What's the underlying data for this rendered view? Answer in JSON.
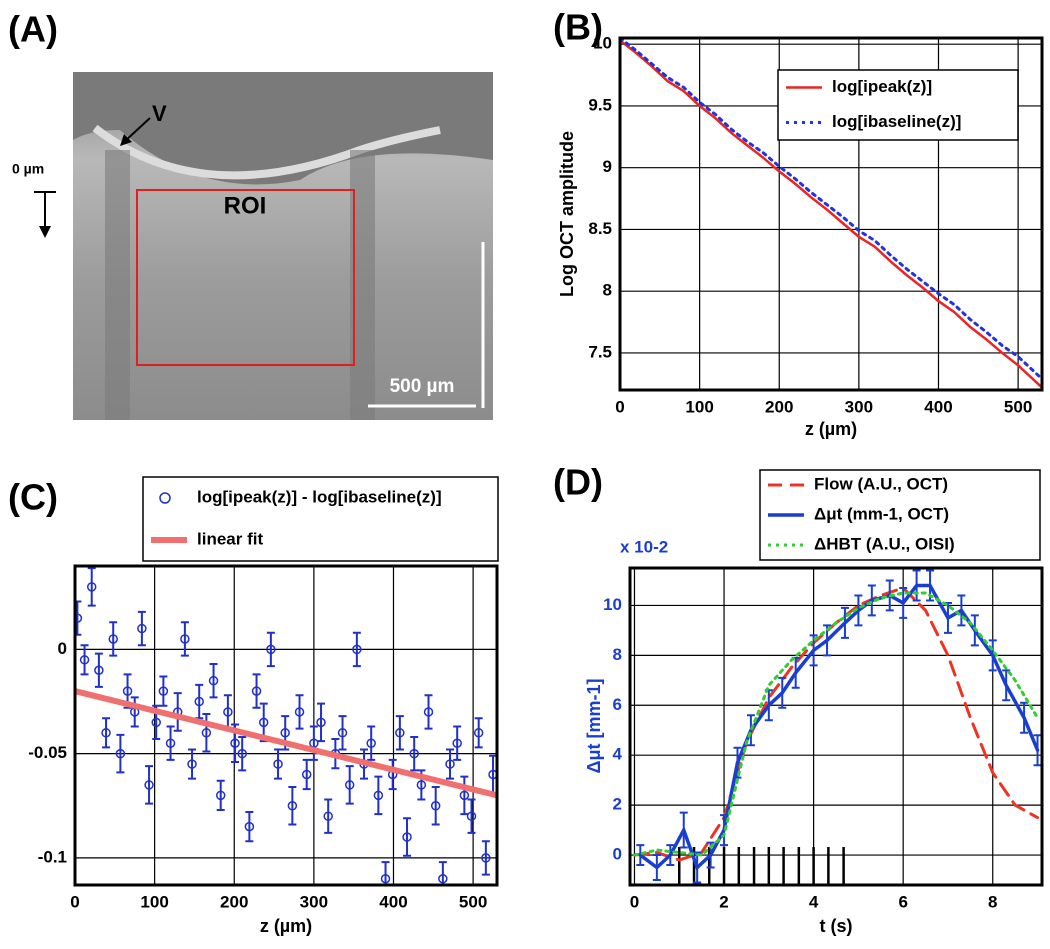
{
  "panel_a": {
    "panel_label": "(A)",
    "vessel_label": "V",
    "depth_label": "0 µm",
    "roi_label": "ROI",
    "scale_label": "500 µm"
  },
  "chart_data": [
    {
      "type": "line",
      "panel_label": "(B)",
      "xlabel": "z (µm)",
      "ylabel": "Log OCT amplitude",
      "xlim": [
        0,
        530
      ],
      "xticks": [
        0,
        100,
        200,
        300,
        400,
        500
      ],
      "ylim": [
        7.2,
        10.05
      ],
      "yticks": [
        7.5,
        8,
        8.5,
        9,
        9.5,
        10
      ],
      "grid": true,
      "legend": "upper right",
      "x": [
        0,
        20,
        40,
        60,
        80,
        100,
        120,
        140,
        160,
        180,
        200,
        220,
        240,
        260,
        280,
        300,
        320,
        340,
        360,
        380,
        400,
        420,
        440,
        460,
        480,
        500,
        520,
        530
      ],
      "series": [
        {
          "name": "log[ipeak(z)]",
          "color": "#ee2222",
          "style": "solid",
          "values": [
            10.03,
            9.93,
            9.82,
            9.7,
            9.62,
            9.5,
            9.4,
            9.28,
            9.18,
            9.08,
            8.97,
            8.87,
            8.76,
            8.66,
            8.55,
            8.44,
            8.36,
            8.24,
            8.13,
            8.03,
            7.92,
            7.83,
            7.71,
            7.61,
            7.5,
            7.4,
            7.28,
            7.22
          ]
        },
        {
          "name": "log[ibaseline(z)]",
          "color": "#2233dd",
          "style": "dotted",
          "values": [
            10.05,
            9.95,
            9.84,
            9.73,
            9.65,
            9.53,
            9.43,
            9.31,
            9.21,
            9.12,
            9.01,
            8.91,
            8.8,
            8.7,
            8.6,
            8.49,
            8.41,
            8.29,
            8.18,
            8.08,
            7.98,
            7.89,
            7.77,
            7.67,
            7.56,
            7.47,
            7.35,
            7.29
          ]
        }
      ]
    },
    {
      "type": "scatter",
      "panel_label": "(C)",
      "xlabel": "z (µm)",
      "xlim": [
        0,
        530
      ],
      "xticks": [
        0,
        100,
        200,
        300,
        400,
        500
      ],
      "ylim": [
        -0.113,
        0.04
      ],
      "yticks": [
        -0.1,
        -0.05,
        0
      ],
      "grid": true,
      "legend": "above",
      "series": [
        {
          "name": "log[ipeak(z)] - log[ibaseline(z)]",
          "color": "#2030c8",
          "marker": "circle",
          "x": [
            3,
            12,
            21,
            30,
            39,
            48,
            57,
            66,
            75,
            84,
            93,
            102,
            111,
            120,
            129,
            138,
            147,
            156,
            165,
            174,
            183,
            192,
            201,
            210,
            219,
            228,
            237,
            246,
            255,
            264,
            273,
            282,
            291,
            300,
            309,
            318,
            327,
            336,
            345,
            354,
            363,
            372,
            381,
            390,
            399,
            408,
            417,
            426,
            435,
            444,
            453,
            462,
            471,
            480,
            489,
            498,
            507,
            516,
            525
          ],
          "values": [
            0.015,
            -0.005,
            0.03,
            -0.01,
            -0.04,
            0.005,
            -0.05,
            -0.02,
            -0.03,
            0.01,
            -0.065,
            -0.035,
            -0.02,
            -0.045,
            -0.03,
            0.005,
            -0.055,
            -0.025,
            -0.04,
            -0.015,
            -0.07,
            -0.03,
            -0.045,
            -0.05,
            -0.085,
            -0.02,
            -0.035,
            0.0,
            -0.055,
            -0.04,
            -0.075,
            -0.03,
            -0.06,
            -0.045,
            -0.035,
            -0.08,
            -0.05,
            -0.04,
            -0.065,
            0.0,
            -0.055,
            -0.045,
            -0.07,
            -0.11,
            -0.06,
            -0.04,
            -0.09,
            -0.05,
            -0.065,
            -0.03,
            -0.075,
            -0.11,
            -0.055,
            -0.045,
            -0.07,
            -0.08,
            -0.04,
            -0.1,
            -0.06
          ],
          "errors": [
            0.008,
            0.007,
            0.009,
            0.008,
            0.007,
            0.008,
            0.009,
            0.008,
            0.007,
            0.008,
            0.009,
            0.008,
            0.007,
            0.008,
            0.009,
            0.008,
            0.007,
            0.008,
            0.009,
            0.008,
            0.007,
            0.008,
            0.009,
            0.008,
            0.007,
            0.008,
            0.009,
            0.008,
            0.007,
            0.008,
            0.009,
            0.008,
            0.007,
            0.008,
            0.009,
            0.008,
            0.007,
            0.008,
            0.009,
            0.008,
            0.007,
            0.008,
            0.009,
            0.008,
            0.007,
            0.008,
            0.009,
            0.008,
            0.007,
            0.008,
            0.009,
            0.008,
            0.007,
            0.008,
            0.009,
            0.008,
            0.007,
            0.008,
            0.009
          ]
        },
        {
          "name": "linear fit",
          "color": "#f07070",
          "style": "thick",
          "x": [
            0,
            530
          ],
          "values": [
            -0.02,
            -0.07
          ]
        }
      ]
    },
    {
      "type": "line",
      "panel_label": "(D)",
      "xlabel": "t (s)",
      "ylabel": "Δμt [mm-1]",
      "y_multiplier": "x 10-2",
      "ytick_color": "#1a3fd0",
      "xlim": [
        -0.1,
        9.1
      ],
      "xticks": [
        0,
        2,
        4,
        6,
        8
      ],
      "ylim": [
        -1.2,
        11.5
      ],
      "yticks": [
        0,
        2,
        4,
        6,
        8,
        10
      ],
      "grid": true,
      "legend": "above",
      "stimulus_x": [
        1.0,
        1.33,
        1.67,
        2.0,
        2.33,
        2.67,
        3.0,
        3.33,
        3.67,
        4.0,
        4.33,
        4.67
      ],
      "series": [
        {
          "name": "Flow (A.U., OCT)",
          "color": "#ee3322",
          "style": "dashed",
          "x": [
            0,
            0.5,
            1.0,
            1.5,
            2.0,
            2.5,
            3.0,
            3.5,
            4.0,
            4.5,
            5.0,
            5.5,
            6.0,
            6.5,
            7.0,
            7.5,
            8.0,
            8.5,
            9.0
          ],
          "values": [
            0,
            0.1,
            -0.2,
            0.1,
            1.5,
            4.5,
            6.3,
            7.5,
            8.5,
            9.3,
            10,
            10.4,
            10.7,
            9.8,
            8,
            5.5,
            3.3,
            2,
            1.5
          ]
        },
        {
          "name": "Δμt (mm-1, OCT)",
          "color": "#1a3fd0",
          "style": "bold",
          "x": [
            0.13,
            0.5,
            0.8,
            1.1,
            1.4,
            1.7,
            2.0,
            2.3,
            2.6,
            3.0,
            3.3,
            3.6,
            4.0,
            4.3,
            4.7,
            5.0,
            5.3,
            5.7,
            6.0,
            6.3,
            6.6,
            7.0,
            7.3,
            7.6,
            8.0,
            8.3,
            8.7,
            9.0
          ],
          "values": [
            0,
            -0.5,
            0,
            1.0,
            -0.5,
            0,
            1.0,
            3.7,
            5,
            6,
            6.5,
            7.3,
            8.2,
            8.6,
            9.3,
            9.8,
            10.2,
            10.4,
            10.1,
            10.8,
            10.8,
            9.5,
            9.8,
            9,
            8,
            6.8,
            5.5,
            4.2
          ],
          "errors": [
            0.4,
            0.5,
            0.4,
            0.7,
            0.6,
            0.5,
            0.6,
            0.6,
            0.6,
            0.6,
            0.6,
            0.6,
            0.6,
            0.6,
            0.6,
            0.6,
            0.6,
            0.6,
            0.6,
            0.6,
            0.6,
            0.6,
            0.6,
            0.6,
            0.6,
            0.6,
            0.6,
            0.6
          ]
        },
        {
          "name": "ΔHBT (A.U., OISI)",
          "color": "#33cc33",
          "style": "dotted",
          "x": [
            0,
            0.5,
            1.0,
            1.5,
            2.0,
            2.5,
            3.0,
            3.5,
            4.0,
            4.5,
            5.0,
            5.5,
            6.0,
            6.5,
            7.0,
            7.5,
            8.0,
            8.5,
            9.0
          ],
          "values": [
            0,
            0.2,
            0.1,
            0,
            0.8,
            4.5,
            6.8,
            7.8,
            8.6,
            9.3,
            9.9,
            10.3,
            10.5,
            10.5,
            10,
            9.3,
            8.2,
            7,
            5.5
          ]
        }
      ]
    }
  ]
}
